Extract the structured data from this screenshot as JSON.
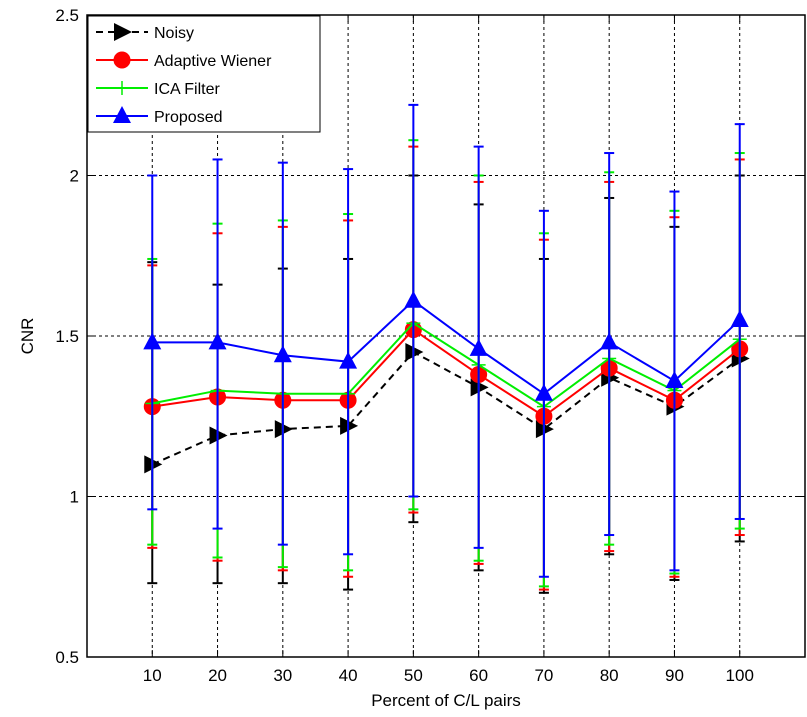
{
  "chart_data": {
    "type": "line",
    "title": "",
    "xlabel": "Percent of C/L pairs",
    "ylabel": "CNR",
    "x": [
      10,
      20,
      30,
      40,
      50,
      60,
      70,
      80,
      90,
      100
    ],
    "xlim": [
      0,
      110
    ],
    "ylim": [
      0.5,
      2.5
    ],
    "xticks": [
      "10",
      "20",
      "30",
      "40",
      "50",
      "60",
      "70",
      "80",
      "90",
      "100"
    ],
    "yticks": [
      "0.5",
      "1",
      "1.5",
      "2",
      "2.5"
    ],
    "grid": true,
    "legend_position": "top-left",
    "series": [
      {
        "name": "Noisy",
        "color": "#000000",
        "line_style": "dashed",
        "marker": "triangle-right",
        "values": [
          1.1,
          1.19,
          1.21,
          1.22,
          1.45,
          1.34,
          1.21,
          1.37,
          1.28,
          1.43
        ],
        "err_low": [
          0.73,
          0.73,
          0.73,
          0.71,
          0.92,
          0.77,
          0.7,
          0.82,
          0.74,
          0.86
        ],
        "err_high": [
          1.73,
          1.66,
          1.71,
          1.74,
          2.0,
          1.91,
          1.74,
          1.93,
          1.84,
          2.0
        ]
      },
      {
        "name": "Adaptive Wiener",
        "color": "#ff0000",
        "line_style": "solid",
        "marker": "circle",
        "values": [
          1.28,
          1.31,
          1.3,
          1.3,
          1.52,
          1.38,
          1.25,
          1.4,
          1.3,
          1.46
        ],
        "err_low": [
          0.84,
          0.8,
          0.77,
          0.75,
          0.95,
          0.79,
          0.71,
          0.83,
          0.75,
          0.88
        ],
        "err_high": [
          1.72,
          1.82,
          1.84,
          1.86,
          2.09,
          1.98,
          1.8,
          1.98,
          1.87,
          2.05
        ]
      },
      {
        "name": "ICA Filter",
        "color": "#00ee00",
        "line_style": "solid",
        "marker": "plus",
        "values": [
          1.29,
          1.33,
          1.32,
          1.32,
          1.54,
          1.41,
          1.28,
          1.43,
          1.33,
          1.49
        ],
        "err_low": [
          0.85,
          0.81,
          0.78,
          0.77,
          0.96,
          0.8,
          0.72,
          0.85,
          0.76,
          0.9
        ],
        "err_high": [
          1.74,
          1.85,
          1.86,
          1.88,
          2.11,
          2.0,
          1.82,
          2.01,
          1.89,
          2.07
        ]
      },
      {
        "name": "Proposed",
        "color": "#0000ff",
        "line_style": "solid",
        "marker": "triangle-up",
        "values": [
          1.48,
          1.48,
          1.44,
          1.42,
          1.61,
          1.46,
          1.32,
          1.48,
          1.36,
          1.55
        ],
        "err_low": [
          0.96,
          0.9,
          0.85,
          0.82,
          1.0,
          0.84,
          0.75,
          0.88,
          0.77,
          0.93
        ],
        "err_high": [
          2.0,
          2.05,
          2.04,
          2.02,
          2.22,
          2.09,
          1.89,
          2.07,
          1.95,
          2.16
        ]
      }
    ]
  }
}
